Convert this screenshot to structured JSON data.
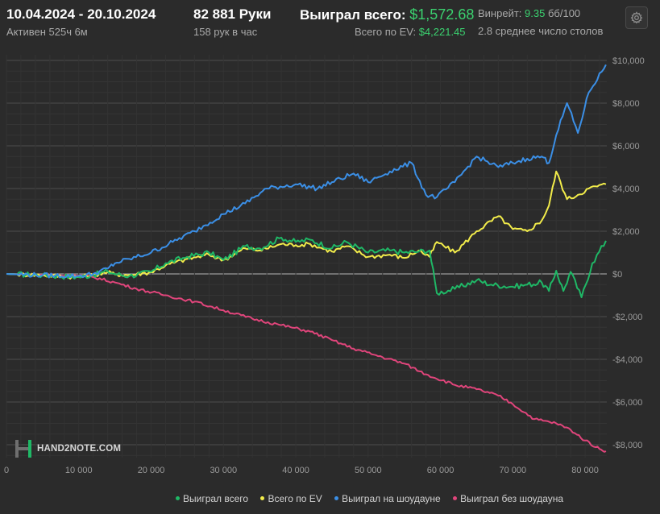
{
  "header": {
    "date_range": "10.04.2024 - 20.10.2024",
    "active": "Активен 525ч 6м",
    "hands": "82 881 Руки",
    "hands_per_hour": "158 рук в час",
    "won_label": "Выиграл всего:",
    "won_value": "$1,572.68",
    "ev_label": "Всего по EV:",
    "ev_value": "$4,221.45",
    "winrate_label": "Винрейт:",
    "winrate_value": "9.35",
    "winrate_unit": "бб/100",
    "tables_avg": "2.8 среднее число столов"
  },
  "settings": {
    "icon": "gear-icon"
  },
  "logo": {
    "text": "HAND2NOTE.COM"
  },
  "colors": {
    "background": "#2b2b2b",
    "won": "#1fb866",
    "ev": "#f2ec4a",
    "showdown": "#3b8fe6",
    "nonshowdown": "#e0457b",
    "accent_green": "#3bd16f"
  },
  "chart_data": {
    "type": "line",
    "xlim": [
      0,
      82881
    ],
    "ylim": [
      -8500,
      10000
    ],
    "x_ticks": [
      0,
      10000,
      20000,
      30000,
      40000,
      50000,
      60000,
      70000,
      80000
    ],
    "x_tick_labels": [
      "0",
      "10 000",
      "20 000",
      "30 000",
      "40 000",
      "50 000",
      "60 000",
      "70 000",
      "80 000"
    ],
    "y_ticks": [
      10000,
      8000,
      6000,
      4000,
      2000,
      0,
      -2000,
      -4000,
      -6000,
      -8000
    ],
    "y_tick_labels": [
      "$10,000",
      "$8,000",
      "$6,000",
      "$4,000",
      "$2,000",
      "$0",
      "-$2,000",
      "-$4,000",
      "-$6,000",
      "-$8,000"
    ],
    "grid": true,
    "legend_position": "bottom",
    "series": [
      {
        "name": "Выиграл всего",
        "color": "#1fb866",
        "x": [
          0,
          5000,
          10000,
          12000,
          14000,
          15000,
          17000,
          20000,
          22000,
          25000,
          28000,
          30000,
          33000,
          35000,
          38000,
          40000,
          42000,
          45000,
          47000,
          50000,
          53000,
          55000,
          57000,
          58500,
          59500,
          62000,
          65000,
          67000,
          70000,
          72000,
          74000,
          75000,
          76000,
          77000,
          78000,
          79500,
          81000,
          82881
        ],
        "values": [
          0,
          -60,
          -150,
          -50,
          120,
          0,
          -100,
          100,
          500,
          800,
          1000,
          650,
          1300,
          1200,
          1700,
          1500,
          1600,
          1200,
          1500,
          1000,
          1100,
          1000,
          1050,
          1100,
          -900,
          -700,
          -300,
          -500,
          -600,
          -500,
          -400,
          -800,
          150,
          -800,
          100,
          -1100,
          500,
          1550
        ]
      },
      {
        "name": "Всего по EV",
        "color": "#f2ec4a",
        "x": [
          0,
          5000,
          10000,
          12000,
          14000,
          15000,
          17000,
          20000,
          22000,
          25000,
          28000,
          30000,
          33000,
          35000,
          38000,
          40000,
          42000,
          45000,
          47000,
          50000,
          53000,
          55000,
          57000,
          58500,
          59500,
          62000,
          65000,
          68000,
          70000,
          72000,
          74000,
          75000,
          76000,
          77500,
          79000,
          80500,
          82881
        ],
        "values": [
          0,
          -60,
          -150,
          -50,
          80,
          -20,
          -50,
          80,
          400,
          700,
          900,
          650,
          1200,
          1100,
          1400,
          1350,
          1400,
          1050,
          1300,
          800,
          900,
          750,
          1100,
          800,
          1500,
          1000,
          2000,
          2700,
          2100,
          2000,
          2500,
          3200,
          4800,
          3500,
          3700,
          4000,
          4200
        ]
      },
      {
        "name": "Выиграл на шоудауне",
        "color": "#3b8fe6",
        "x": [
          0,
          5000,
          10000,
          12000,
          14000,
          15000,
          17000,
          20000,
          23000,
          26000,
          30000,
          33000,
          36000,
          40000,
          43000,
          45000,
          48000,
          50000,
          53000,
          56000,
          58000,
          59500,
          62000,
          65000,
          68000,
          70000,
          72000,
          74000,
          75000,
          76000,
          77500,
          79000,
          80500,
          82881
        ],
        "values": [
          0,
          -60,
          -100,
          0,
          250,
          500,
          700,
          1000,
          1500,
          2000,
          2800,
          3300,
          4000,
          4200,
          4000,
          4300,
          4700,
          4300,
          4800,
          5200,
          3700,
          3600,
          4300,
          5500,
          5000,
          5200,
          5400,
          5500,
          5200,
          6500,
          8000,
          6600,
          8500,
          9800
        ]
      },
      {
        "name": "Выиграл без шоудауна",
        "color": "#e0457b",
        "x": [
          0,
          5000,
          10000,
          12000,
          15000,
          18000,
          22000,
          26000,
          30000,
          34000,
          38000,
          42000,
          45000,
          48000,
          52000,
          55000,
          58000,
          62000,
          65000,
          68000,
          70000,
          73000,
          76000,
          78000,
          80000,
          82000,
          82881
        ],
        "values": [
          0,
          -30,
          -80,
          -150,
          -400,
          -700,
          -1000,
          -1300,
          -1700,
          -2100,
          -2400,
          -2700,
          -3100,
          -3500,
          -3900,
          -4200,
          -4700,
          -5200,
          -5400,
          -5700,
          -6100,
          -6800,
          -7000,
          -7300,
          -7800,
          -8200,
          -8300
        ]
      }
    ]
  }
}
